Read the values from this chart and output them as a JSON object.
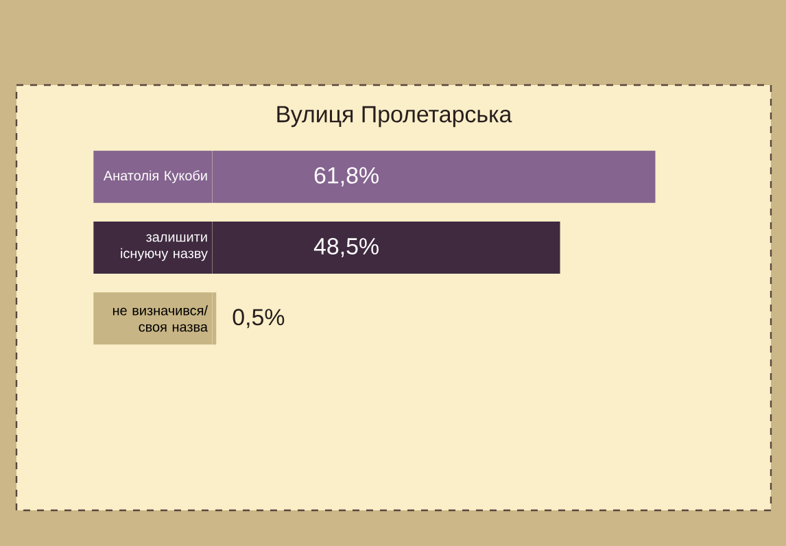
{
  "chart_data": {
    "type": "bar",
    "orientation": "horizontal",
    "title": "Вулиця Пролетарська",
    "categories": [
      "Анатолія Кукоби",
      "залишити існуючу назву",
      "не визначився/ своя назва"
    ],
    "values": [
      61.8,
      48.5,
      0.5
    ],
    "colors": [
      "#85648f",
      "#3f2a40",
      "#c8b585"
    ],
    "value_labels": [
      "61,8%",
      "48,5%",
      "0,5%"
    ]
  }
}
